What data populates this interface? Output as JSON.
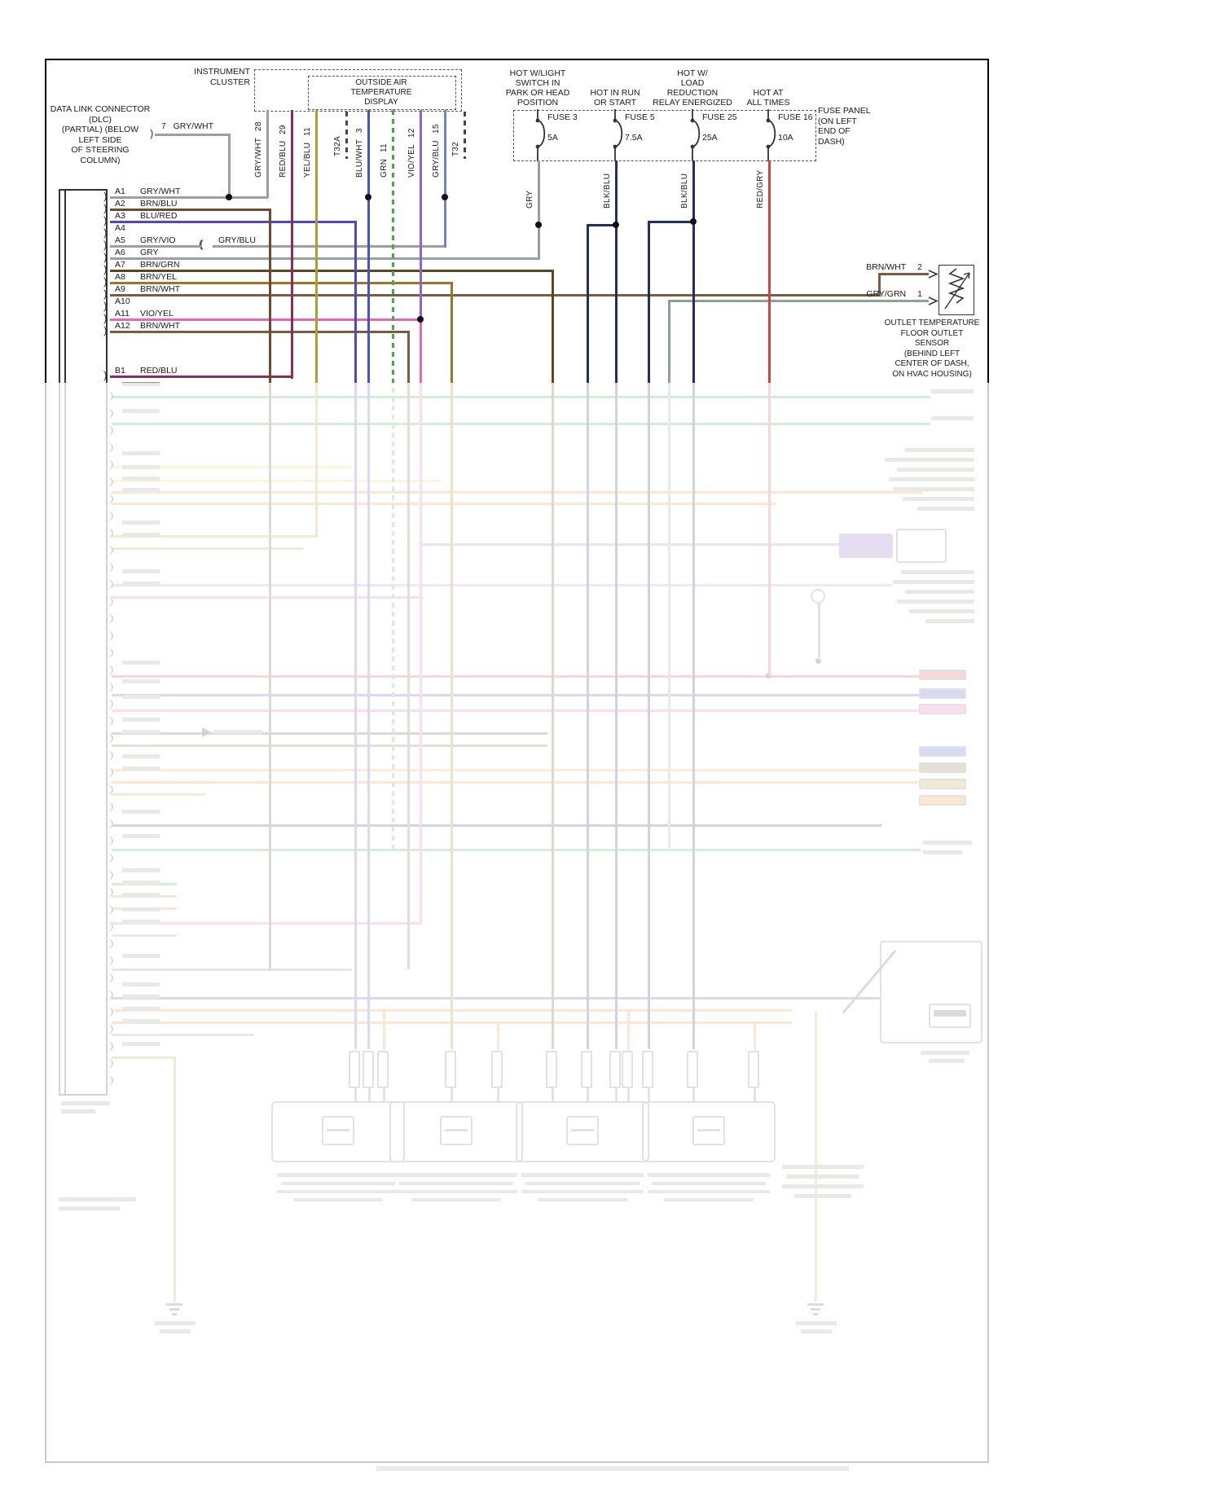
{
  "dlc": {
    "label": "DATA LINK CONNECTOR\n(DLC)\n(PARTIAL) (BELOW\nLEFT SIDE\nOF STEERING\nCOLUMN)",
    "wire7_label": "7   GRY/WHT"
  },
  "instrument_cluster": {
    "title": "INSTRUMENT\nCLUSTER",
    "display": "OUTSIDE AIR\nTEMPERATURE\nDISPLAY",
    "wires": [
      {
        "label": "GRY/WHT",
        "pin": "28"
      },
      {
        "label": "RED/BLU",
        "pin": "29"
      },
      {
        "label": "YEL/BLU",
        "pin": "11"
      },
      {
        "label": "T32A",
        "pin": ""
      },
      {
        "label": "BLU/WHT",
        "pin": "3"
      },
      {
        "label": "GRN",
        "pin": "11"
      },
      {
        "label": "VIO/YEL",
        "pin": "12"
      },
      {
        "label": "GRY/BLU",
        "pin": "15"
      },
      {
        "label": "T32",
        "pin": ""
      }
    ]
  },
  "power": {
    "headers": [
      "HOT W/LIGHT\nSWITCH IN\nPARK OR HEAD\nPOSITION",
      "HOT IN RUN\nOR START",
      "HOT W/\nLOAD\nREDUCTION\nRELAY ENERGIZED",
      "HOT AT\nALL TIMES"
    ],
    "fuses": [
      {
        "name": "FUSE 3",
        "amps": "5A",
        "wire": "GRY"
      },
      {
        "name": "FUSE 5",
        "amps": "7.5A",
        "wire": "BLK/BLU"
      },
      {
        "name": "FUSE 25",
        "amps": "25A",
        "wire": "BLK/BLU"
      },
      {
        "name": "FUSE 16",
        "amps": "10A",
        "wire": "RED/GRY"
      }
    ],
    "panel_label": "FUSE PANEL\n(ON LEFT\nEND OF\nDASH)"
  },
  "connector": {
    "pins": [
      {
        "id": "A1",
        "color": "GRY/WHT"
      },
      {
        "id": "A2",
        "color": "BRN/BLU"
      },
      {
        "id": "A3",
        "color": "BLU/RED"
      },
      {
        "id": "A4",
        "color": ""
      },
      {
        "id": "A5",
        "color": "GRY/VIO",
        "splice": "GRY/BLU"
      },
      {
        "id": "A6",
        "color": "GRY"
      },
      {
        "id": "A7",
        "color": "BRN/GRN"
      },
      {
        "id": "A8",
        "color": "BRN/YEL"
      },
      {
        "id": "A9",
        "color": "BRN/WHT"
      },
      {
        "id": "A10",
        "color": ""
      },
      {
        "id": "A11",
        "color": "VIO/YEL"
      },
      {
        "id": "A12",
        "color": "BRN/WHT"
      },
      {
        "id": "B1",
        "color": "RED/BLU"
      }
    ]
  },
  "sensor": {
    "pin2_label": "BRN/WHT",
    "pin2_num": "2",
    "pin1_label": "GRY/GRN",
    "pin1_num": "1",
    "caption": "OUTLET TEMPERATURE\nFLOOR OUTLET\nSENSOR\n(BEHIND LEFT\nCENTER OF DASH,\nON HVAC HOUSING)"
  },
  "wire_colors": {
    "gry_wht": "#9e9e9e",
    "red_blu": "#8a2e57",
    "yel_blu": "#ab9f35",
    "blu_wht": "#4953c8",
    "grn": "#3fae4a",
    "vio_yel": "#8f63d2",
    "vio_yel_pink": "#e06ab4",
    "gry_blu": "#7583bb",
    "brn_blu": "#6b4a33",
    "blu_red": "#5146c4",
    "gry": "#9e9e9e",
    "brn_grn": "#59481f",
    "brn_yel": "#99762a",
    "brn_wht": "#7a5c43",
    "blk_blu": "#232f63",
    "red_gry": "#cc4444",
    "gry_grn": "#8fa08f",
    "blk": "#444444"
  }
}
